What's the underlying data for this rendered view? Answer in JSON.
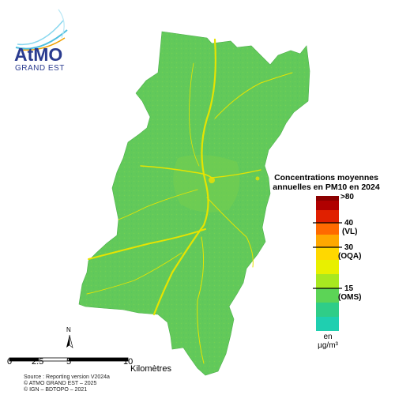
{
  "logo": {
    "brand": "AtMO",
    "sub": "GRAND EST"
  },
  "legend": {
    "title_line1": "Concentrations moyennes",
    "title_line2": "annuelles en PM10 en 2024",
    "ticks": [
      {
        "value": ">80",
        "note": ""
      },
      {
        "value": "40",
        "note": "(VL)"
      },
      {
        "value": "30",
        "note": "(OQA)"
      },
      {
        "value": "15",
        "note": "(OMS)"
      }
    ],
    "unit_line1": "en",
    "unit_line2": "µg/m³",
    "colors": [
      "#8b0000",
      "#c81010",
      "#ff4a00",
      "#ff9a00",
      "#ffd800",
      "#e8f000",
      "#8ee22c",
      "#3fd36a",
      "#27cba0",
      "#1fcfb0"
    ]
  },
  "scalebar": {
    "labels": [
      "0",
      "2.5",
      "5",
      "10"
    ],
    "unit": "Kilomètres"
  },
  "north": {
    "label": "N"
  },
  "source": {
    "line1": "Source : Reporting version V2024a",
    "line2": "© ATMO GRAND EST – 2025",
    "line3": "© IGN – BDTOPO – 2021"
  },
  "map": {
    "base_color": "#5fc85a",
    "road_color": "#e0e000"
  }
}
